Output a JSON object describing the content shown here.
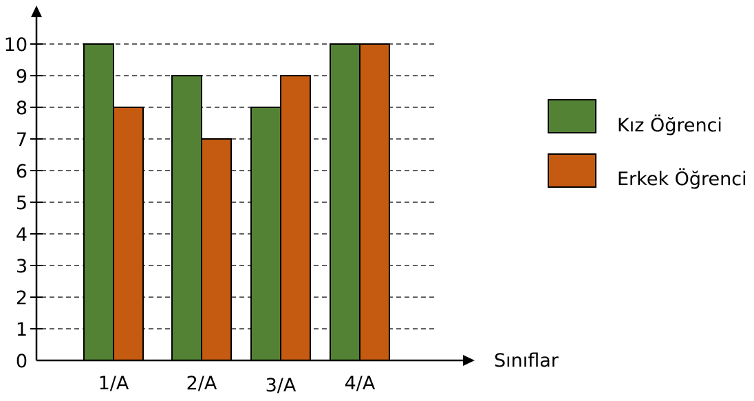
{
  "chart_data": {
    "type": "bar",
    "title": "",
    "xlabel": "Sınıflar",
    "ylabel": "",
    "categories": [
      "1/A",
      "2/A",
      "3/A",
      "4/A"
    ],
    "series": [
      {
        "name": "Kız Öğrenci",
        "values": [
          10,
          9,
          8,
          10
        ],
        "color": "#548235"
      },
      {
        "name": "Erkek Öğrenci",
        "values": [
          8,
          7,
          9,
          10
        ],
        "color": "#c55a11"
      }
    ],
    "y_ticks": [
      "0",
      "1",
      "2",
      "3",
      "4",
      "5",
      "6",
      "7",
      "8",
      "9",
      "10"
    ],
    "ylim": [
      0,
      10
    ],
    "grid": "horizontal-dashed",
    "legend_position": "right"
  }
}
